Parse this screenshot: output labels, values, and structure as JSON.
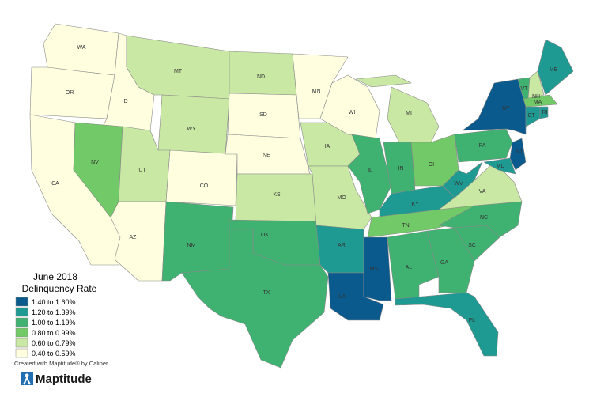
{
  "legend": {
    "title": "June 2018",
    "subtitle": "Delinquency Rate",
    "classes": [
      {
        "label": "1.40 to 1.60%",
        "color": "#0b5a8e"
      },
      {
        "label": "1.20 to 1.39%",
        "color": "#1f9a92"
      },
      {
        "label": "1.00 to 1.19%",
        "color": "#3fb272"
      },
      {
        "label": "0.80 to 0.99%",
        "color": "#72c967"
      },
      {
        "label": "0.60 to 0.79%",
        "color": "#c9e8a4"
      },
      {
        "label": "0.40 to 0.59%",
        "color": "#ffffe0"
      }
    ]
  },
  "states": [
    {
      "label": "WA",
      "class": 5
    },
    {
      "label": "OR",
      "class": 5
    },
    {
      "label": "CA",
      "class": 5
    },
    {
      "label": "ID",
      "class": 5
    },
    {
      "label": "NV",
      "class": 3
    },
    {
      "label": "MT",
      "class": 4
    },
    {
      "label": "WY",
      "class": 4
    },
    {
      "label": "UT",
      "class": 4
    },
    {
      "label": "AZ",
      "class": 5
    },
    {
      "label": "CO",
      "class": 5
    },
    {
      "label": "NM",
      "class": 2
    },
    {
      "label": "ND",
      "class": 4
    },
    {
      "label": "SD",
      "class": 5
    },
    {
      "label": "NE",
      "class": 5
    },
    {
      "label": "KS",
      "class": 4
    },
    {
      "label": "OK",
      "class": 2
    },
    {
      "label": "TX",
      "class": 2
    },
    {
      "label": "MN",
      "class": 5
    },
    {
      "label": "IA",
      "class": 4
    },
    {
      "label": "MO",
      "class": 4
    },
    {
      "label": "AR",
      "class": 1
    },
    {
      "label": "LA",
      "class": 0
    },
    {
      "label": "MS",
      "class": 0
    },
    {
      "label": "WI",
      "class": 5
    },
    {
      "label": "IL",
      "class": 2
    },
    {
      "label": "MI",
      "class": 4
    },
    {
      "label": "IN",
      "class": 2
    },
    {
      "label": "OH",
      "class": 3
    },
    {
      "label": "KY",
      "class": 1
    },
    {
      "label": "TN",
      "class": 3
    },
    {
      "label": "AL",
      "class": 2
    },
    {
      "label": "GA",
      "class": 2
    },
    {
      "label": "FL",
      "class": 1
    },
    {
      "label": "SC",
      "class": 2
    },
    {
      "label": "NC",
      "class": 2
    },
    {
      "label": "VA",
      "class": 4
    },
    {
      "label": "WV",
      "class": 1
    },
    {
      "label": "PA",
      "class": 2
    },
    {
      "label": "NY",
      "class": 0
    },
    {
      "label": "VT",
      "class": 2
    },
    {
      "label": "NH",
      "class": 4
    },
    {
      "label": "ME",
      "class": 1
    },
    {
      "label": "MA",
      "class": 3
    },
    {
      "label": "CT",
      "class": 1
    },
    {
      "label": "RI",
      "class": 1
    },
    {
      "label": "NJ",
      "class": 0
    },
    {
      "label": "MD",
      "class": 1
    }
  ],
  "credit": "Created with Maptitude® by Caliper",
  "logo": "Maptitude"
}
